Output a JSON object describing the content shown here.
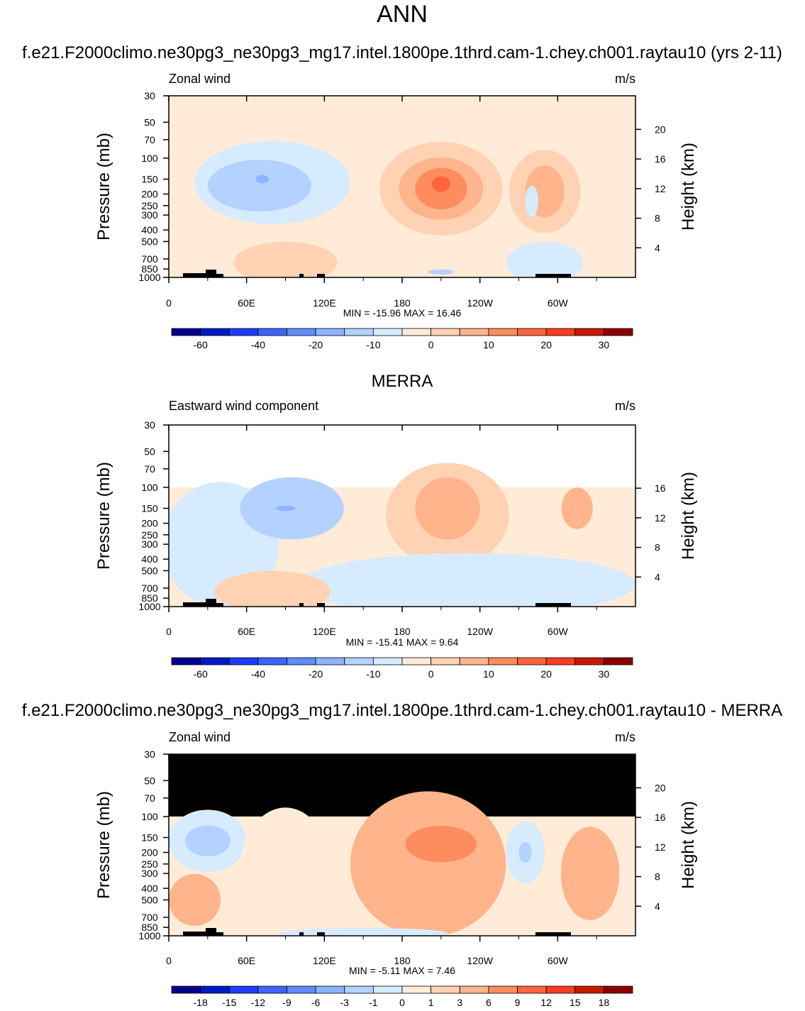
{
  "page_title": "ANN",
  "colors": {
    "main_scale": [
      "#00008c",
      "#0019c8",
      "#1e3cff",
      "#3c64ff",
      "#5f8cff",
      "#8cb4ff",
      "#b4d2ff",
      "#d7ebff",
      "#ffebd7",
      "#ffd2b4",
      "#ffb48c",
      "#ff8c5f",
      "#ff643c",
      "#ff3c1e",
      "#c81900",
      "#8c0000"
    ],
    "land": "#000000",
    "missing": "#ffffff"
  },
  "chart_data": [
    {
      "type": "heatmap",
      "heading": "f.e21.F2000climo.ne30pg3_ne30pg3_mg17.intel.1800pe.1thrd.cam-1.chey.ch001.raytau10 (yrs 2-11)",
      "left_label": "Zonal wind",
      "units": "m/s",
      "ylabel": "Pressure (mb)",
      "ylabel_right": "Height (km)",
      "pressure_ticks": [
        "30",
        "50",
        "70",
        "100",
        "150",
        "200",
        "250",
        "300",
        "400",
        "500",
        "700",
        "850",
        "1000"
      ],
      "height_ticks": [
        "20",
        "16",
        "12",
        "8",
        "4"
      ],
      "x_ticks": [
        "0",
        "60E",
        "120E",
        "180",
        "120W",
        "60W"
      ],
      "stats": "MIN = -15.96  MAX =  16.46",
      "colorbar_labels": [
        "-60",
        "-40",
        "-20",
        "-10",
        "0",
        "10",
        "20",
        "30"
      ],
      "top_pressure": 30,
      "fill_level": 0,
      "features": [
        {
          "lon": 80,
          "p": 160,
          "level": -1,
          "w": 120,
          "h": 0.8
        },
        {
          "lon": 70,
          "p": 170,
          "level": -2,
          "w": 80,
          "h": 0.5
        },
        {
          "lon": 72,
          "p": 150,
          "level": -3,
          "w": 10,
          "h": 0.08
        },
        {
          "lon": 210,
          "p": 180,
          "level": 1,
          "w": 95,
          "h": 0.9
        },
        {
          "lon": 210,
          "p": 180,
          "level": 2,
          "w": 65,
          "h": 0.6
        },
        {
          "lon": 210,
          "p": 180,
          "level": 3,
          "w": 40,
          "h": 0.4
        },
        {
          "lon": 210,
          "p": 165,
          "level": 4,
          "w": 14,
          "h": 0.15
        },
        {
          "lon": 290,
          "p": 190,
          "level": 1,
          "w": 55,
          "h": 0.8
        },
        {
          "lon": 290,
          "p": 190,
          "level": 2,
          "w": 30,
          "h": 0.5
        },
        {
          "lon": 280,
          "p": 230,
          "level": -1,
          "w": 10,
          "h": 0.3
        },
        {
          "lon": 90,
          "p": 750,
          "level": 1,
          "w": 80,
          "h": 0.4
        },
        {
          "lon": 290,
          "p": 750,
          "level": -1,
          "w": 60,
          "h": 0.4
        },
        {
          "lon": 210,
          "p": 900,
          "level": -2,
          "w": 20,
          "h": 0.05
        }
      ]
    },
    {
      "type": "heatmap",
      "heading": "MERRA",
      "left_label": "Eastward wind component",
      "units": "m/s",
      "ylabel": "Pressure (mb)",
      "ylabel_right": "Height (km)",
      "pressure_ticks": [
        "30",
        "50",
        "70",
        "100",
        "150",
        "200",
        "250",
        "300",
        "400",
        "500",
        "700",
        "850",
        "1000"
      ],
      "height_ticks": [
        "16",
        "12",
        "8",
        "4"
      ],
      "x_ticks": [
        "0",
        "60E",
        "120E",
        "180",
        "120W",
        "60W"
      ],
      "stats": "MIN = -15.41  MAX =   9.64",
      "colorbar_labels": [
        "-60",
        "-40",
        "-20",
        "-10",
        "0",
        "10",
        "20",
        "30"
      ],
      "top_pressure": 100,
      "fill_level": 0,
      "features": [
        {
          "lon": 40,
          "p": 300,
          "level": -1,
          "w": 90,
          "h": 1.2
        },
        {
          "lon": 95,
          "p": 150,
          "level": -2,
          "w": 80,
          "h": 0.6
        },
        {
          "lon": 90,
          "p": 150,
          "level": -3,
          "w": 15,
          "h": 0.05
        },
        {
          "lon": 215,
          "p": 170,
          "level": 1,
          "w": 95,
          "h": 1.0
        },
        {
          "lon": 215,
          "p": 150,
          "level": 2,
          "w": 50,
          "h": 0.6
        },
        {
          "lon": 315,
          "p": 150,
          "level": 2,
          "w": 24,
          "h": 0.4
        },
        {
          "lon": 230,
          "p": 650,
          "level": -1,
          "w": 260,
          "h": 0.6
        },
        {
          "lon": 80,
          "p": 750,
          "level": 1,
          "w": 90,
          "h": 0.4
        }
      ]
    },
    {
      "type": "heatmap",
      "heading": "f.e21.F2000climo.ne30pg3_ne30pg3_mg17.intel.1800pe.1thrd.cam-1.chey.ch001.raytau10 - MERRA",
      "left_label": "Zonal wind",
      "units": "m/s",
      "ylabel": "Pressure (mb)",
      "ylabel_right": "Height (km)",
      "pressure_ticks": [
        "30",
        "50",
        "70",
        "100",
        "150",
        "200",
        "250",
        "300",
        "400",
        "500",
        "700",
        "850",
        "1000"
      ],
      "height_ticks": [
        "20",
        "16",
        "12",
        "8",
        "4"
      ],
      "x_ticks": [
        "0",
        "60E",
        "120E",
        "180",
        "120W",
        "60W"
      ],
      "stats": "MIN =  -5.11  MAX =   7.46",
      "colorbar_labels": [
        "-18",
        "-15",
        "-12",
        "-9",
        "-6",
        "-3",
        "-1",
        "0",
        "1",
        "3",
        "6",
        "9",
        "12",
        "15",
        "18"
      ],
      "top_pressure": 100,
      "fill_level": 1,
      "features": [
        {
          "lon": 30,
          "p": 160,
          "level": -1,
          "w": 60,
          "h": 0.6
        },
        {
          "lon": 30,
          "p": 160,
          "level": -2,
          "w": 35,
          "h": 0.3
        },
        {
          "lon": 90,
          "p": 280,
          "level": 0,
          "w": 70,
          "h": 1.2
        },
        {
          "lon": 200,
          "p": 250,
          "level": 2,
          "w": 120,
          "h": 1.4
        },
        {
          "lon": 210,
          "p": 170,
          "level": 3,
          "w": 55,
          "h": 0.35
        },
        {
          "lon": 275,
          "p": 200,
          "level": -1,
          "w": 30,
          "h": 0.6
        },
        {
          "lon": 275,
          "p": 200,
          "level": -2,
          "w": 10,
          "h": 0.2
        },
        {
          "lon": 325,
          "p": 300,
          "level": 2,
          "w": 45,
          "h": 0.9
        },
        {
          "lon": 20,
          "p": 500,
          "level": 2,
          "w": 40,
          "h": 0.5
        },
        {
          "lon": 150,
          "p": 950,
          "level": -1,
          "w": 130,
          "h": 0.1
        }
      ]
    }
  ]
}
